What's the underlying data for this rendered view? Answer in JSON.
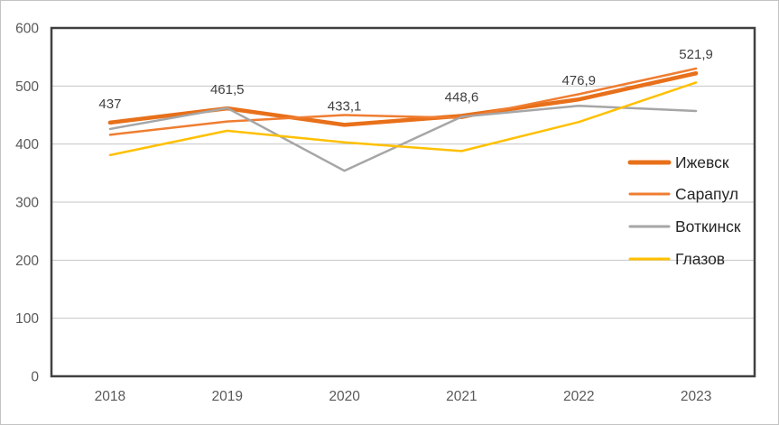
{
  "chart_data": {
    "type": "line",
    "title": "",
    "xlabel": "",
    "ylabel": "",
    "x": [
      "2018",
      "2019",
      "2020",
      "2021",
      "2022",
      "2023"
    ],
    "ylim": [
      0,
      600
    ],
    "yticks": [
      {
        "value": 0,
        "label": "0"
      },
      {
        "value": 100,
        "label": "100"
      },
      {
        "value": 200,
        "label": "200"
      },
      {
        "value": 300,
        "label": "300"
      },
      {
        "value": 400,
        "label": "400"
      },
      {
        "value": 500,
        "label": "500"
      },
      {
        "value": 600,
        "label": "600"
      }
    ],
    "grid": true,
    "legend_position": "right",
    "series": [
      {
        "name": "Ижевск",
        "color": "#e8701a",
        "stroke_width": 4.5,
        "values": [
          437,
          461.5,
          433.1,
          448.6,
          476.9,
          521.9
        ],
        "point_labels": [
          "437",
          "461,5",
          "433,1",
          "448,6",
          "476,9",
          "521,9"
        ]
      },
      {
        "name": "Сарапул",
        "color": "#ef7d31",
        "stroke_width": 2.5,
        "values": [
          416,
          439,
          450,
          445,
          486,
          530
        ],
        "point_labels": []
      },
      {
        "name": "Воткинск",
        "color": "#a6a6a6",
        "stroke_width": 2.5,
        "values": [
          426,
          462,
          354,
          447,
          466,
          457
        ],
        "point_labels": []
      },
      {
        "name": "Глазов",
        "color": "#ffc000",
        "stroke_width": 2.5,
        "values": [
          381,
          423,
          403,
          388,
          438,
          506
        ],
        "point_labels": []
      }
    ],
    "style": {
      "plot_border_color": "#404040",
      "plot_border_width": 2.5,
      "grid_color": "#c6c6c6",
      "grid_width": 1,
      "tick_label_color": "#595959",
      "data_label_color": "#404040",
      "legend_text_color": "#262626"
    }
  }
}
